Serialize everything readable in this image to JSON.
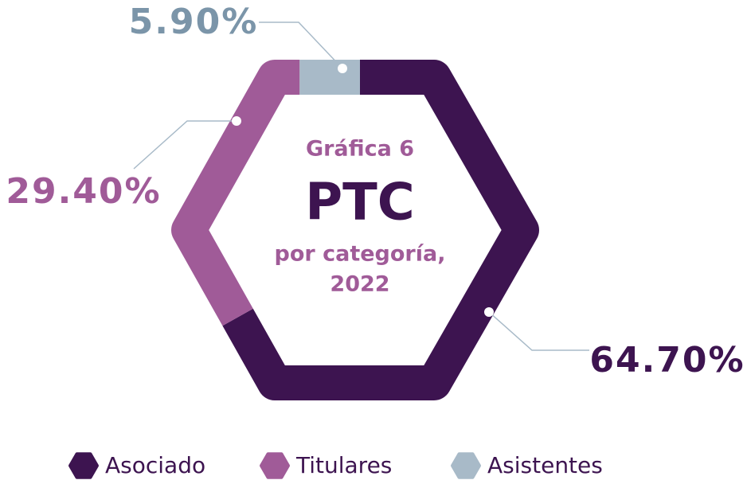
{
  "chart_data": {
    "type": "donut",
    "shape": "hexagon",
    "label": "Gráfica 6",
    "title": "PTC",
    "subtitle": [
      "por categoría,",
      "2022"
    ],
    "categories": [
      "Asociado",
      "Titulares",
      "Asistentes"
    ],
    "values": [
      64.7,
      29.4,
      5.9
    ],
    "value_labels": [
      "64.70%",
      "29.40%",
      "5.90%"
    ],
    "colors": [
      "#3d1450",
      "#a05b98",
      "#a8bac8"
    ],
    "legend": "bottom"
  }
}
